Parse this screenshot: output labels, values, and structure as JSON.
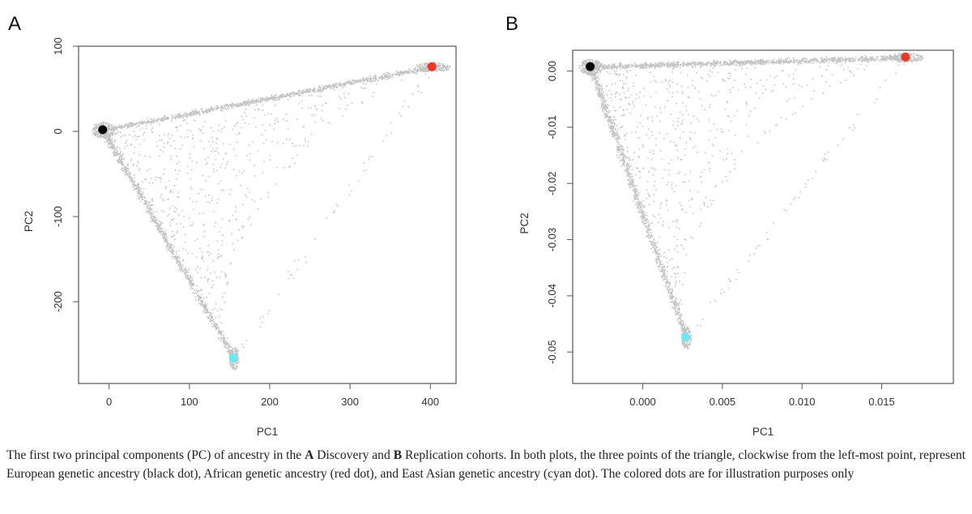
{
  "chart_data": [
    {
      "type": "scatter",
      "panel_label": "A",
      "xlabel": "PC1",
      "ylabel": "PC2",
      "xlim": [
        -38,
        432
      ],
      "ylim": [
        -296,
        100
      ],
      "xticks": [
        0,
        100,
        200,
        300,
        400
      ],
      "yticks": [
        100,
        0,
        -100,
        -200
      ],
      "background_point_color": "#c4c4c4",
      "vertices": {
        "left": [
          -8,
          2
        ],
        "right": [
          402,
          76
        ],
        "bottom": [
          155,
          -266
        ]
      },
      "highlighted_points": [
        {
          "x": -8,
          "y": 2,
          "color": "#000000"
        },
        {
          "x": 402,
          "y": 76,
          "color": "#e8392b"
        },
        {
          "x": 155,
          "y": -266,
          "color": "#6fe7ee"
        }
      ],
      "grid": false
    },
    {
      "type": "scatter",
      "panel_label": "B",
      "xlabel": "PC1",
      "ylabel": "PC2",
      "xlim": [
        -0.0044,
        0.0195
      ],
      "ylim": [
        -0.0556,
        0.0037
      ],
      "xticks": [
        0.0,
        0.005,
        0.01,
        0.015
      ],
      "xtick_labels": [
        "0.000",
        "0.005",
        "0.010",
        "0.015"
      ],
      "yticks": [
        0.0,
        -0.01,
        -0.02,
        -0.03,
        -0.04,
        -0.05
      ],
      "ytick_labels": [
        "0.00",
        "-0.01",
        "-0.02",
        "-0.03",
        "-0.04",
        "-0.05"
      ],
      "background_point_color": "#c4c4c4",
      "vertices": {
        "left": [
          -0.0033,
          0.0008
        ],
        "right": [
          0.0165,
          0.0025
        ],
        "bottom": [
          0.0027,
          -0.0474
        ]
      },
      "highlighted_points": [
        {
          "x": -0.0033,
          "y": 0.0008,
          "color": "#000000"
        },
        {
          "x": 0.0165,
          "y": 0.0025,
          "color": "#e8392b"
        },
        {
          "x": 0.0027,
          "y": -0.0474,
          "color": "#6fe7ee"
        }
      ],
      "grid": false
    }
  ],
  "caption": {
    "t1": "The first two principal components (PC) of ancestry in the ",
    "b1": "A",
    "t2": " Discovery and ",
    "b2": "B",
    "t3": " Replication cohorts. In both plots, the three points of the triangle, clockwise from the left-most point, represent European genetic ancestry (black dot), African genetic ancestry (red dot), and East Asian genetic ancestry (cyan dot). The colored dots are for illustration purposes only"
  }
}
